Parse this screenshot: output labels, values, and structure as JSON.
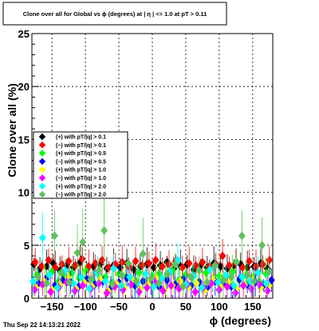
{
  "title": "Clone  over all for Global vs ϕ (degrees) at |  η | <= 1.0 at pT > 0.11",
  "xlabel": "ϕ (degrees)",
  "ylabel": "Clone  over all (%)",
  "footer": "Thu Sep 22 14:13:21 2022",
  "chart_data": {
    "type": "scatter",
    "title": "Clone  over all for Global vs ϕ (degrees) at |  η | <= 1.0 at pT > 0.11",
    "xlabel": "ϕ (degrees)",
    "ylabel": "Clone  over all (%)",
    "xlim": [
      -180,
      180
    ],
    "ylim": [
      0,
      25
    ],
    "grid": true,
    "legend_position": "middle-left",
    "x_ticks": [
      {
        "value": -150,
        "label": "−150"
      },
      {
        "value": -100,
        "label": "−100"
      },
      {
        "value": -50,
        "label": "−50"
      },
      {
        "value": 0,
        "label": "0"
      },
      {
        "value": 50,
        "label": "50"
      },
      {
        "value": 100,
        "label": "100"
      },
      {
        "value": 150,
        "label": "150"
      }
    ],
    "y_ticks": [
      {
        "value": 0,
        "label": "0"
      },
      {
        "value": 5,
        "label": "5"
      },
      {
        "value": 10,
        "label": "10"
      },
      {
        "value": 15,
        "label": "15"
      },
      {
        "value": 20,
        "label": "20"
      },
      {
        "value": 25,
        "label": "25"
      }
    ],
    "series": [
      {
        "name": "(+) with pT/|q| > 0.1",
        "color": "#000000",
        "marker": "diamond",
        "points": [
          [
            -177,
            3.2
          ],
          [
            -168,
            2.8
          ],
          [
            -158,
            3.0
          ],
          [
            -148,
            3.3
          ],
          [
            -138,
            2.6
          ],
          [
            -128,
            3.1
          ],
          [
            -118,
            2.9
          ],
          [
            -108,
            3.4
          ],
          [
            -98,
            2.7
          ],
          [
            -88,
            3.0
          ],
          [
            -78,
            3.2
          ],
          [
            -68,
            2.8
          ],
          [
            -58,
            3.1
          ],
          [
            -48,
            2.9
          ],
          [
            -38,
            3.3
          ],
          [
            -28,
            2.7
          ],
          [
            -18,
            3.0
          ],
          [
            -8,
            3.2
          ],
          [
            2,
            2.9
          ],
          [
            12,
            3.1
          ],
          [
            22,
            3.4
          ],
          [
            32,
            2.8
          ],
          [
            42,
            3.0
          ],
          [
            52,
            3.2
          ],
          [
            62,
            2.7
          ],
          [
            72,
            3.1
          ],
          [
            82,
            2.9
          ],
          [
            92,
            3.3
          ],
          [
            102,
            3.0
          ],
          [
            112,
            2.8
          ],
          [
            122,
            3.1
          ],
          [
            132,
            3.2
          ],
          [
            142,
            2.9
          ],
          [
            152,
            3.0
          ],
          [
            162,
            3.3
          ],
          [
            172,
            2.8
          ]
        ]
      },
      {
        "name": "(−) with pT/|q| > 0.1",
        "color": "#ff0000",
        "marker": "diamond",
        "points": [
          [
            -175,
            3.4
          ],
          [
            -165,
            3.0
          ],
          [
            -155,
            3.6
          ],
          [
            -145,
            2.9
          ],
          [
            -135,
            3.2
          ],
          [
            -125,
            3.5
          ],
          [
            -115,
            3.1
          ],
          [
            -105,
            3.7
          ],
          [
            -95,
            3.0
          ],
          [
            -85,
            3.3
          ],
          [
            -75,
            3.6
          ],
          [
            -65,
            2.9
          ],
          [
            -55,
            3.2
          ],
          [
            -45,
            3.4
          ],
          [
            -35,
            3.0
          ],
          [
            -25,
            3.5
          ],
          [
            -15,
            3.1
          ],
          [
            -5,
            3.3
          ],
          [
            5,
            3.6
          ],
          [
            15,
            3.0
          ],
          [
            25,
            3.2
          ],
          [
            35,
            3.5
          ],
          [
            45,
            2.9
          ],
          [
            55,
            3.3
          ],
          [
            65,
            3.1
          ],
          [
            75,
            3.4
          ],
          [
            85,
            3.0
          ],
          [
            95,
            3.2
          ],
          [
            105,
            4.0
          ],
          [
            115,
            3.1
          ],
          [
            125,
            3.3
          ],
          [
            135,
            2.9
          ],
          [
            145,
            3.5
          ],
          [
            155,
            3.0
          ],
          [
            165,
            3.2
          ],
          [
            175,
            3.6
          ]
        ]
      },
      {
        "name": "(+) with pT/|q| > 0.5",
        "color": "#00ff00",
        "marker": "diamond",
        "points": [
          [
            -172,
            2.2
          ],
          [
            -160,
            1.8
          ],
          [
            -150,
            2.5
          ],
          [
            -140,
            1.6
          ],
          [
            -130,
            2.1
          ],
          [
            -120,
            2.4
          ],
          [
            -110,
            1.9
          ],
          [
            -100,
            2.6
          ],
          [
            -90,
            1.7
          ],
          [
            -80,
            2.2
          ],
          [
            -70,
            2.0
          ],
          [
            -60,
            1.5
          ],
          [
            -50,
            2.3
          ],
          [
            -40,
            2.0
          ],
          [
            -30,
            1.8
          ],
          [
            -20,
            2.4
          ],
          [
            -10,
            1.6
          ],
          [
            0,
            2.1
          ],
          [
            10,
            2.3
          ],
          [
            20,
            1.9
          ],
          [
            30,
            2.6
          ],
          [
            40,
            1.7
          ],
          [
            50,
            2.2
          ],
          [
            60,
            2.0
          ],
          [
            70,
            1.6
          ],
          [
            80,
            2.4
          ],
          [
            90,
            1.9
          ],
          [
            100,
            2.1
          ],
          [
            110,
            1.8
          ],
          [
            120,
            2.5
          ],
          [
            130,
            1.7
          ],
          [
            140,
            2.2
          ],
          [
            150,
            2.0
          ],
          [
            160,
            1.6
          ],
          [
            170,
            2.3
          ]
        ]
      },
      {
        "name": "(−) with pT/|q| > 0.5",
        "color": "#0000ff",
        "marker": "diamond",
        "points": [
          [
            -170,
            1.4
          ],
          [
            -158,
            1.9
          ],
          [
            -146,
            1.2
          ],
          [
            -134,
            1.7
          ],
          [
            -122,
            1.5
          ],
          [
            -110,
            1.1
          ],
          [
            -98,
            1.8
          ],
          [
            -86,
            1.3
          ],
          [
            -74,
            1.6
          ],
          [
            -62,
            1.0
          ],
          [
            -50,
            1.5
          ],
          [
            -38,
            1.9
          ],
          [
            -26,
            1.2
          ],
          [
            -14,
            1.6
          ],
          [
            -2,
            1.4
          ],
          [
            10,
            1.1
          ],
          [
            22,
            1.7
          ],
          [
            34,
            1.3
          ],
          [
            46,
            1.8
          ],
          [
            58,
            1.2
          ],
          [
            70,
            1.5
          ],
          [
            82,
            1.0
          ],
          [
            94,
            1.6
          ],
          [
            106,
            1.4
          ],
          [
            118,
            1.1
          ],
          [
            130,
            1.8
          ],
          [
            142,
            1.3
          ],
          [
            154,
            1.5
          ],
          [
            166,
            1.2
          ],
          [
            178,
            1.7
          ]
        ]
      },
      {
        "name": "(+) with pT/|q| > 1.0",
        "color": "#ffff00",
        "marker": "diamond",
        "points": [
          [
            -174,
            1.0
          ],
          [
            -162,
            1.6
          ],
          [
            -150,
            0.8
          ],
          [
            -138,
            1.3
          ],
          [
            -126,
            2.0
          ],
          [
            -114,
            0.9
          ],
          [
            -102,
            1.5
          ],
          [
            -90,
            1.1
          ],
          [
            -78,
            1.8
          ],
          [
            -66,
            0.7
          ],
          [
            -54,
            1.4
          ],
          [
            -42,
            1.0
          ],
          [
            -30,
            1.7
          ],
          [
            -18,
            0.9
          ],
          [
            -6,
            1.3
          ],
          [
            6,
            1.9
          ],
          [
            18,
            0.8
          ],
          [
            30,
            1.2
          ],
          [
            42,
            1.6
          ],
          [
            54,
            1.0
          ],
          [
            66,
            1.4
          ],
          [
            78,
            0.7
          ],
          [
            90,
            1.8
          ],
          [
            102,
            1.1
          ],
          [
            114,
            1.5
          ],
          [
            126,
            0.9
          ],
          [
            138,
            1.3
          ],
          [
            150,
            1.7
          ],
          [
            162,
            1.0
          ],
          [
            174,
            1.2
          ]
        ]
      },
      {
        "name": "(−) with pT/|q| > 1.0",
        "color": "#ff00ff",
        "marker": "diamond",
        "points": [
          [
            -176,
            0.8
          ],
          [
            -164,
            1.3
          ],
          [
            -152,
            0.6
          ],
          [
            -140,
            1.0
          ],
          [
            -128,
            1.5
          ],
          [
            -116,
            0.7
          ],
          [
            -104,
            1.2
          ],
          [
            -92,
            0.9
          ],
          [
            -80,
            1.4
          ],
          [
            -68,
            0.5
          ],
          [
            -56,
            1.1
          ],
          [
            -44,
            0.8
          ],
          [
            -32,
            1.3
          ],
          [
            -20,
            0.6
          ],
          [
            -8,
            1.0
          ],
          [
            4,
            1.5
          ],
          [
            16,
            0.7
          ],
          [
            28,
            1.2
          ],
          [
            40,
            0.9
          ],
          [
            52,
            1.3
          ],
          [
            64,
            0.6
          ],
          [
            76,
            1.0
          ],
          [
            88,
            1.4
          ],
          [
            100,
            0.8
          ],
          [
            112,
            1.1
          ],
          [
            124,
            0.5
          ],
          [
            136,
            1.2
          ],
          [
            148,
            0.9
          ],
          [
            160,
            1.3
          ],
          [
            172,
            0.7
          ]
        ]
      },
      {
        "name": "(+) with pT/|q| > 2.0",
        "color": "#00ffff",
        "marker": "diamond",
        "points": [
          [
            -178,
            1.6
          ],
          [
            -164,
            5.7
          ],
          [
            -154,
            2.2
          ],
          [
            -142,
            1.0
          ],
          [
            -130,
            2.6
          ],
          [
            -118,
            1.4
          ],
          [
            -106,
            2.0
          ],
          [
            -94,
            0.9
          ],
          [
            -82,
            2.4
          ],
          [
            -70,
            1.6
          ],
          [
            -58,
            2.8
          ],
          [
            -46,
            1.2
          ],
          [
            -34,
            2.0
          ],
          [
            -22,
            1.5
          ],
          [
            -10,
            2.3
          ],
          [
            2,
            1.1
          ],
          [
            14,
            1.9
          ],
          [
            26,
            2.5
          ],
          [
            38,
            3.6
          ],
          [
            50,
            1.3
          ],
          [
            62,
            2.1
          ],
          [
            74,
            1.0
          ],
          [
            86,
            2.7
          ],
          [
            98,
            1.5
          ],
          [
            110,
            2.2
          ],
          [
            122,
            1.2
          ],
          [
            134,
            2.0
          ],
          [
            146,
            1.6
          ],
          [
            158,
            2.4
          ],
          [
            170,
            1.4
          ]
        ]
      },
      {
        "name": "(−) with pT/|q| > 2.0",
        "color": "#60c060",
        "marker": "diamond",
        "points": [
          [
            -171,
            2.0
          ],
          [
            -158,
            1.4
          ],
          [
            -146,
            5.9
          ],
          [
            -136,
            2.4
          ],
          [
            -124,
            1.5
          ],
          [
            -112,
            4.3
          ],
          [
            -104,
            5.3
          ],
          [
            -92,
            1.8
          ],
          [
            -80,
            2.6
          ],
          [
            -72,
            6.4
          ],
          [
            -60,
            1.3
          ],
          [
            -46,
            2.2
          ],
          [
            -36,
            3.3
          ],
          [
            -24,
            1.6
          ],
          [
            -14,
            4.2
          ],
          [
            -2,
            1.9
          ],
          [
            10,
            1.4
          ],
          [
            22,
            2.3
          ],
          [
            34,
            3.2
          ],
          [
            46,
            1.1
          ],
          [
            58,
            2.0
          ],
          [
            70,
            2.6
          ],
          [
            82,
            1.5
          ],
          [
            94,
            3.1
          ],
          [
            106,
            1.7
          ],
          [
            118,
            2.0
          ],
          [
            126,
            3.4
          ],
          [
            134,
            5.9
          ],
          [
            142,
            2.2
          ],
          [
            152,
            1.6
          ],
          [
            164,
            5.0
          ],
          [
            174,
            2.5
          ]
        ]
      }
    ]
  }
}
